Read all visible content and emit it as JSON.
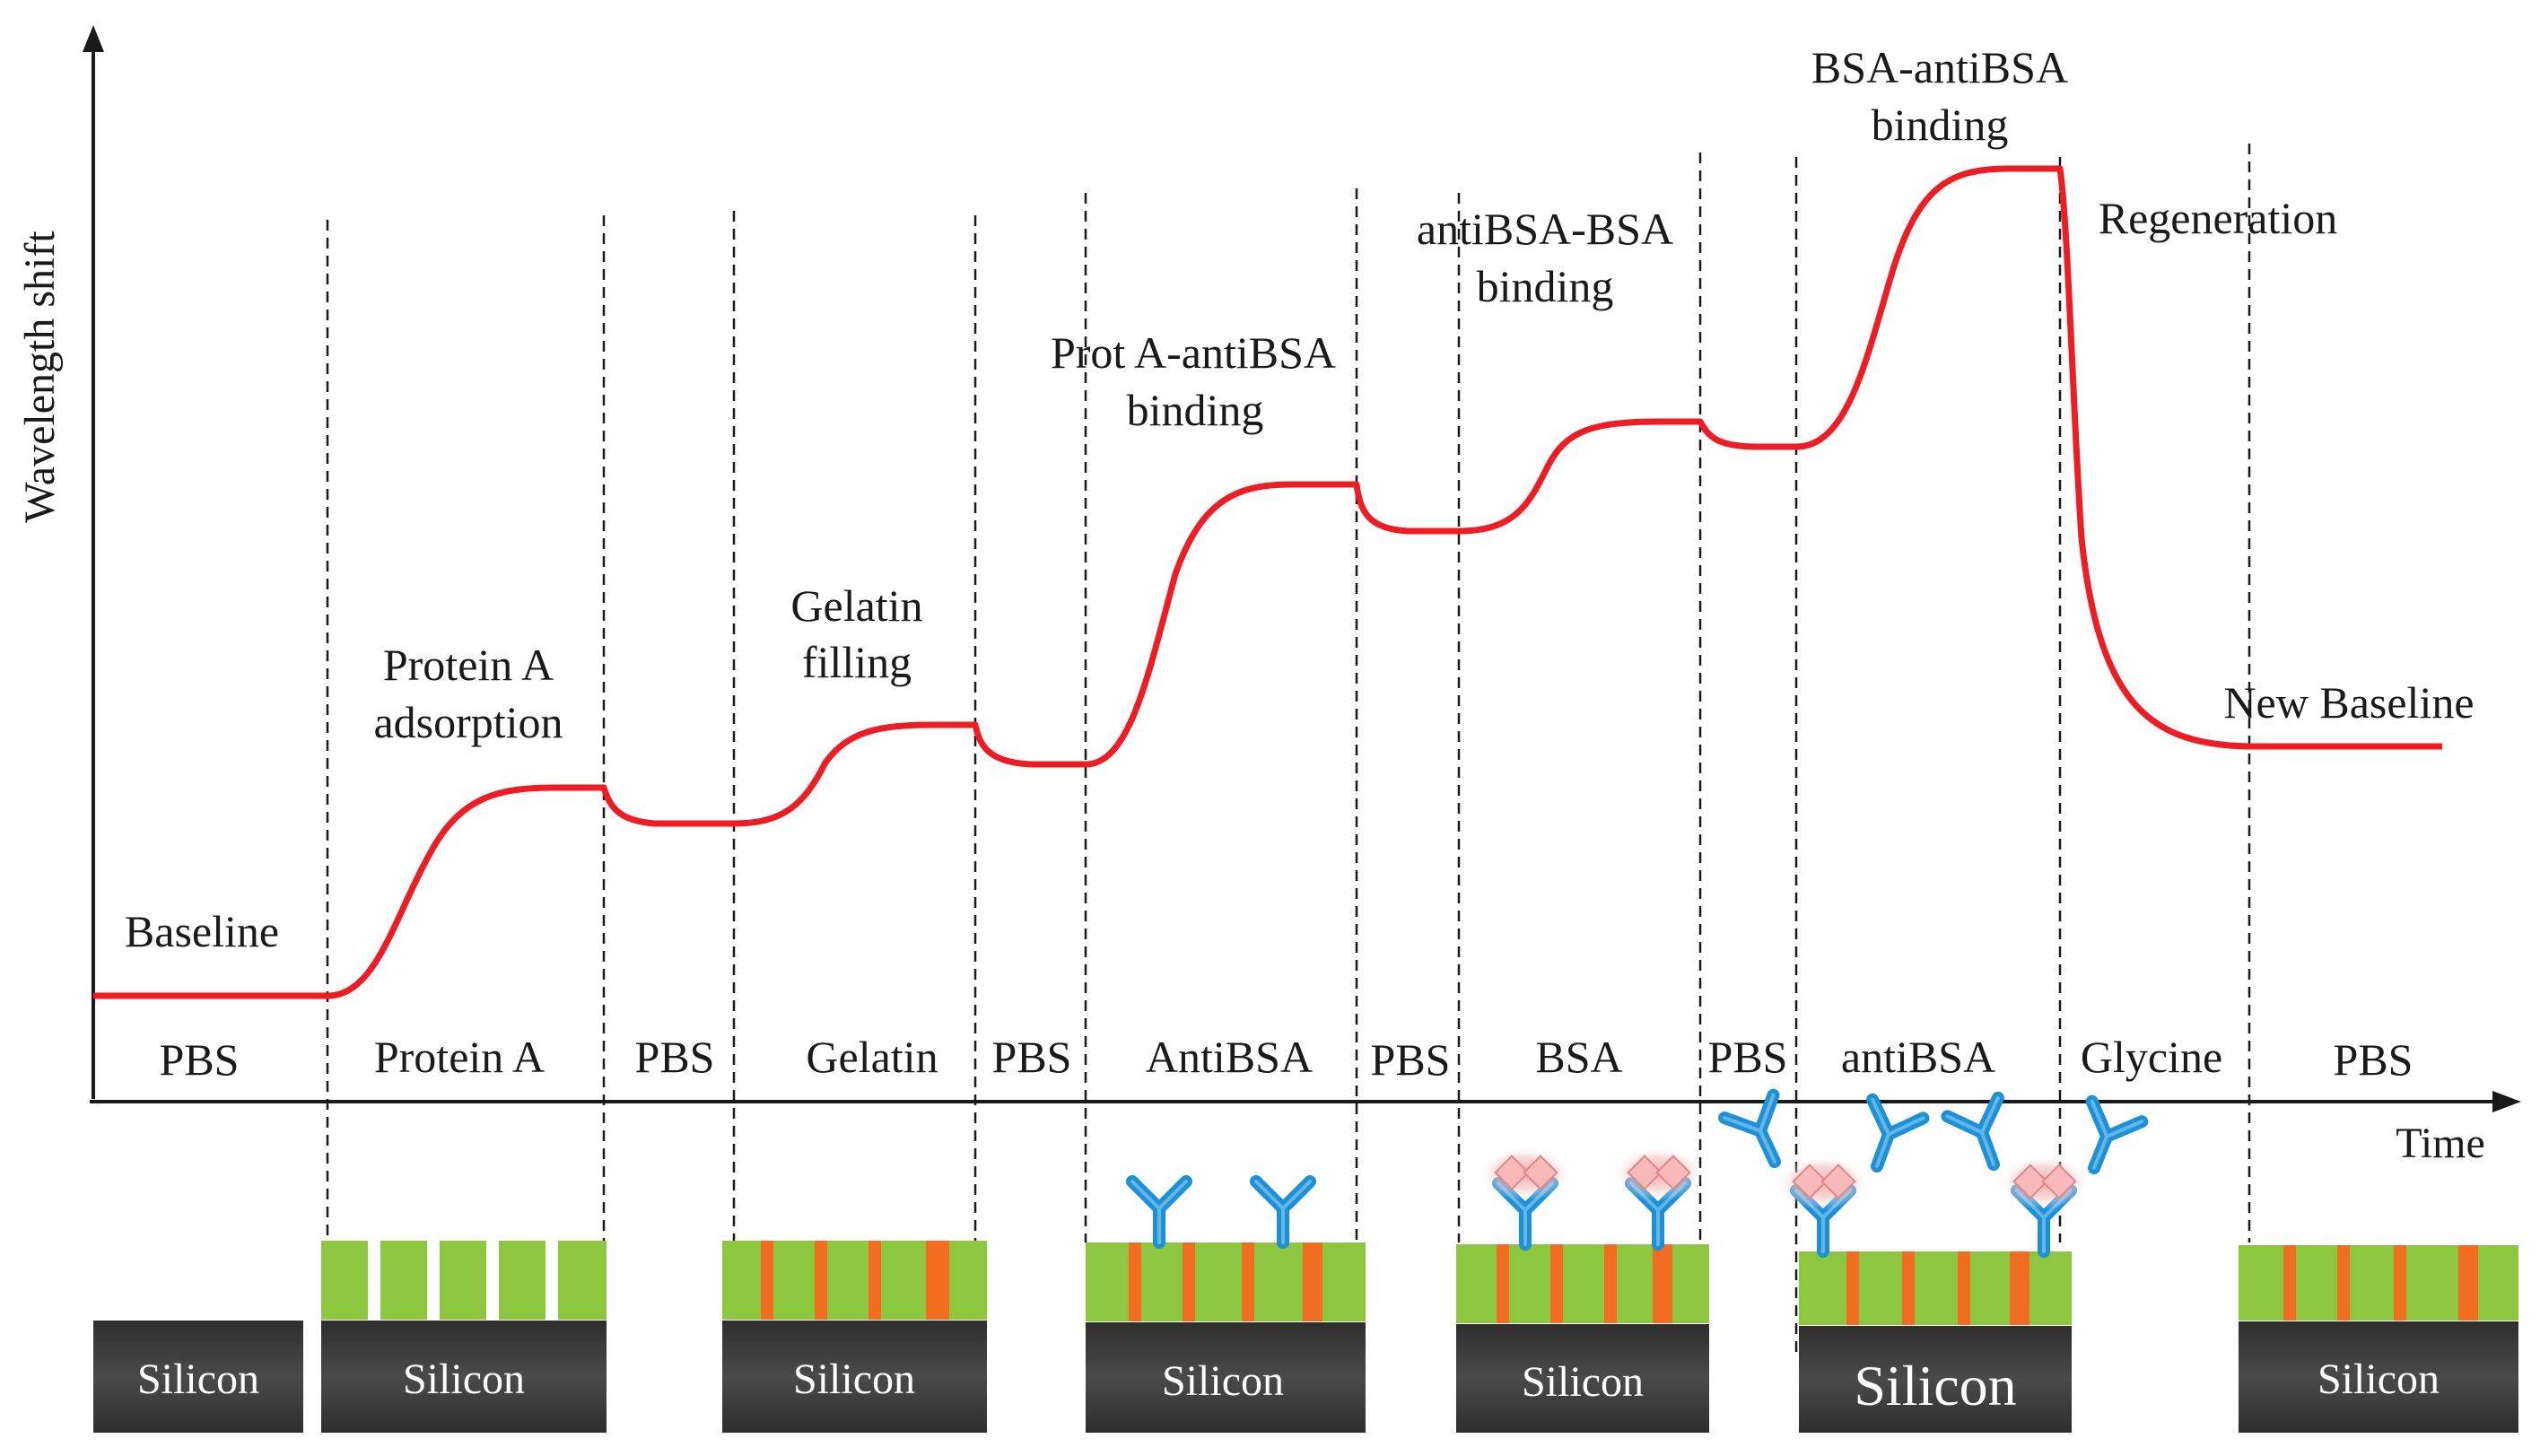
{
  "axes": {
    "y_label": "Wavelength shift",
    "x_label": "Time"
  },
  "phases": [
    "PBS",
    "Protein A",
    "PBS",
    "Gelatin",
    "PBS",
    "AntiBSA",
    "PBS",
    "BSA",
    "PBS",
    "antiBSA",
    "Glycine",
    "PBS"
  ],
  "levels": {
    "baseline": "Baseline",
    "protein_a_1": "Protein A",
    "protein_a_2": "adsorption",
    "gelatin_1": "Gelatin",
    "gelatin_2": "filling",
    "prota_1": "Prot A-antiBSA",
    "prota_2": "binding",
    "antibsa_1": "antiBSA-BSA",
    "antibsa_2": "binding",
    "bsa_1": "BSA-antiBSA",
    "bsa_2": "binding",
    "regeneration": "Regeneration",
    "new_baseline": "New Baseline"
  },
  "substrate": {
    "label": "Silicon"
  },
  "colors": {
    "curve": "#ee1c24",
    "silicon": "#3a3a3a",
    "layer_green": "#8dc63f",
    "gelatin_orange": "#f26d21",
    "antibody_blue": "#1e90d6",
    "bsa_pink": "#f4b6b6"
  }
}
